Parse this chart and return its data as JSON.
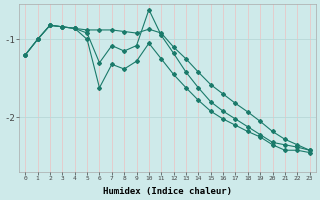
{
  "background_color": "#ceeaea",
  "grid_color_v": "#e8c8c8",
  "grid_color_h": "#b8d8d8",
  "line_color": "#1a7a6a",
  "xlabel": "Humidex (Indice chaleur)",
  "x_ticks": [
    0,
    1,
    2,
    3,
    4,
    5,
    6,
    7,
    8,
    9,
    10,
    11,
    12,
    13,
    14,
    15,
    16,
    17,
    18,
    19,
    20,
    21,
    22,
    23
  ],
  "ylim": [
    -2.7,
    -0.55
  ],
  "y_ticks": [
    -2,
    -1
  ],
  "series1_y": [
    -1.2,
    -1.0,
    -0.82,
    -0.84,
    -0.86,
    -0.88,
    -0.88,
    -0.88,
    -0.9,
    -0.92,
    -0.87,
    -0.92,
    -1.1,
    -1.25,
    -1.42,
    -1.58,
    -1.7,
    -1.82,
    -1.93,
    -2.05,
    -2.18,
    -2.28,
    -2.35,
    -2.42
  ],
  "series2_y": [
    -1.2,
    -1.0,
    -0.82,
    -0.84,
    -0.86,
    -0.92,
    -1.3,
    -1.08,
    -1.15,
    -1.08,
    -0.62,
    -0.95,
    -1.18,
    -1.42,
    -1.62,
    -1.8,
    -1.92,
    -2.02,
    -2.12,
    -2.22,
    -2.32,
    -2.35,
    -2.38,
    -2.42
  ],
  "series3_y": [
    -1.2,
    -1.0,
    -0.82,
    -0.84,
    -0.86,
    -1.0,
    -1.62,
    -1.32,
    -1.38,
    -1.28,
    -1.05,
    -1.25,
    -1.45,
    -1.62,
    -1.78,
    -1.92,
    -2.02,
    -2.1,
    -2.18,
    -2.25,
    -2.35,
    -2.42,
    -2.42,
    -2.45
  ]
}
